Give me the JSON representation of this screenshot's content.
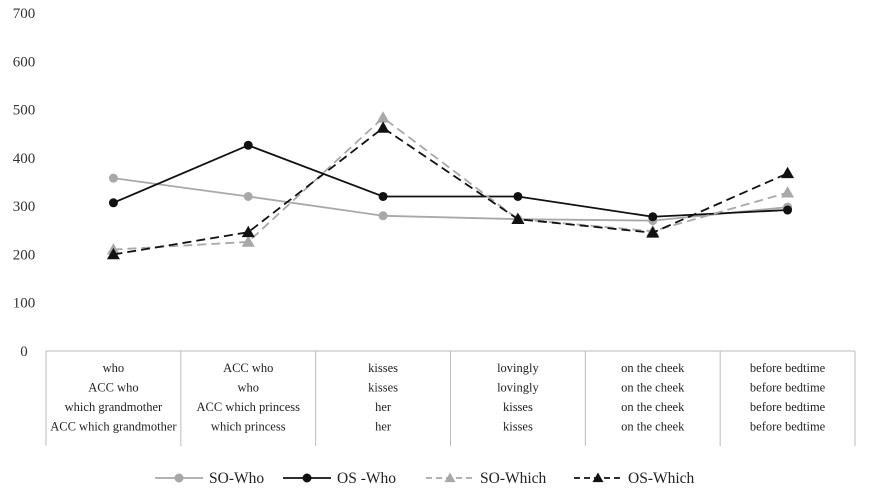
{
  "chart_data": {
    "type": "line",
    "title": "",
    "xlabel": "",
    "ylabel": "",
    "ylim": [
      0,
      700
    ],
    "yticks": [
      0,
      100,
      200,
      300,
      400,
      500,
      600,
      700
    ],
    "grid": false,
    "legend_position": "bottom",
    "category_rows": [
      [
        "who",
        "ACC who",
        "kisses",
        "lovingly",
        "on the cheek",
        "before bedtime"
      ],
      [
        "ACC who",
        "who",
        "kisses",
        "lovingly",
        "on the cheek",
        "before bedtime"
      ],
      [
        "which grandmother",
        "ACC which princess",
        "her",
        "kisses",
        "on the cheek",
        "before bedtime"
      ],
      [
        "ACC which grandmother",
        "which princess",
        "her",
        "kisses",
        "on the cheek",
        "before bedtime"
      ]
    ],
    "series": [
      {
        "name": "SO-Who",
        "values": [
          358,
          320,
          280,
          273,
          270,
          298
        ],
        "color": "#a8a8a8",
        "dash": "solid",
        "marker": "circle"
      },
      {
        "name": "OS -Who",
        "values": [
          307,
          426,
          320,
          320,
          278,
          292
        ],
        "color": "#111111",
        "dash": "solid",
        "marker": "circle"
      },
      {
        "name": "SO-Which",
        "values": [
          210,
          226,
          483,
          273,
          248,
          328
        ],
        "color": "#a8a8a8",
        "dash": "dashed",
        "marker": "triangle"
      },
      {
        "name": "OS-Which",
        "values": [
          200,
          246,
          462,
          273,
          245,
          368
        ],
        "color": "#111111",
        "dash": "dashed",
        "marker": "triangle"
      }
    ]
  }
}
